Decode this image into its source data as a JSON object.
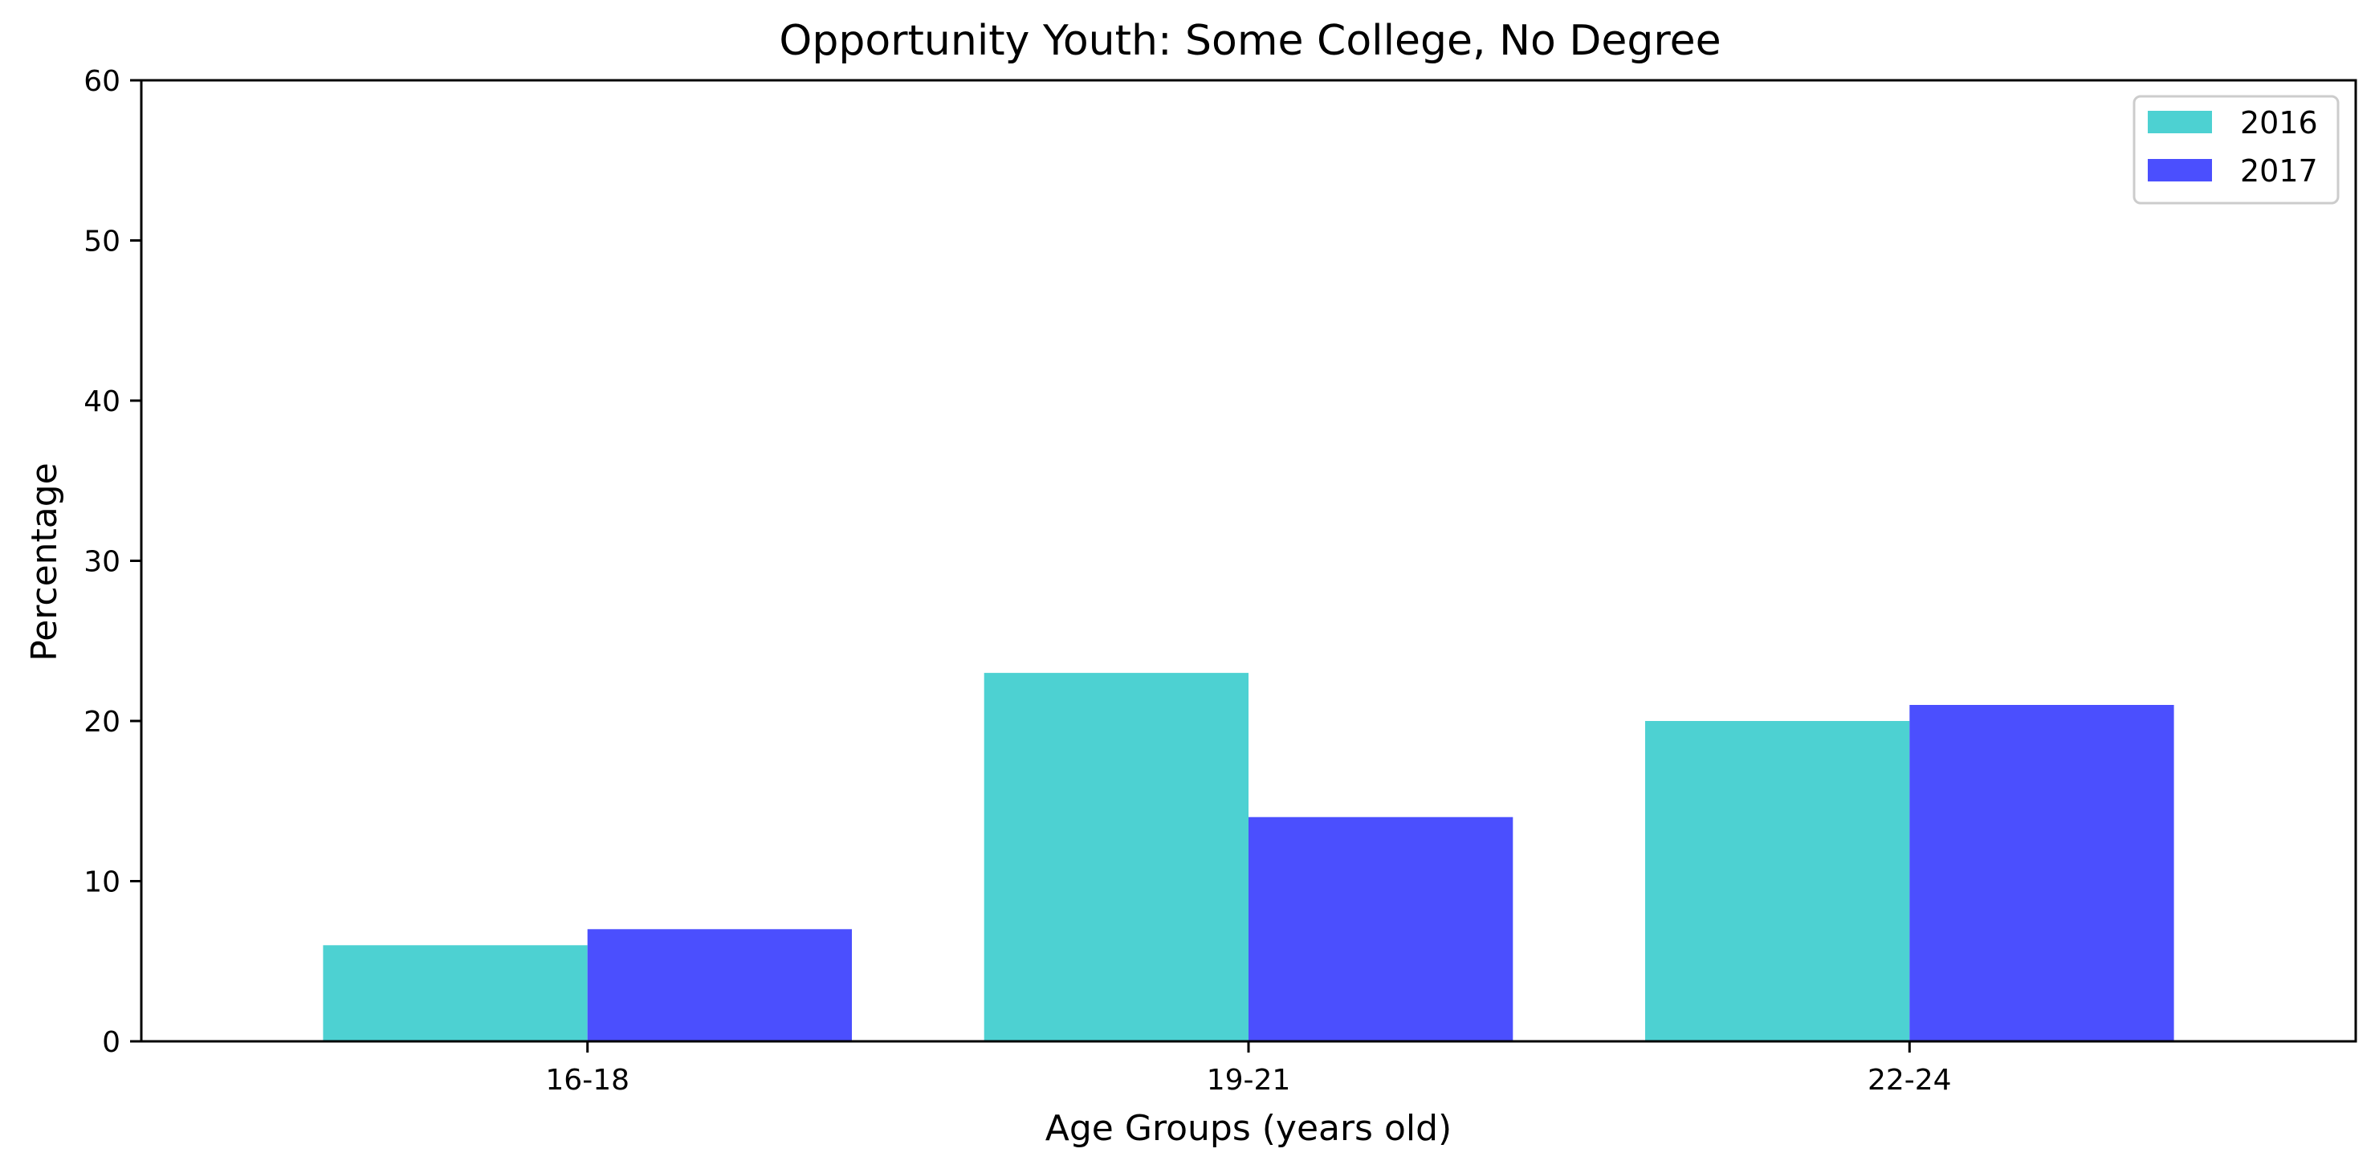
{
  "chart_data": {
    "type": "bar",
    "title": "Opportunity Youth: Some College, No Degree",
    "xlabel": "Age Groups (years old)",
    "ylabel": "Percentage",
    "categories": [
      "16-18",
      "19-21",
      "22-24"
    ],
    "series": [
      {
        "name": "2016",
        "values": [
          6,
          23,
          20
        ],
        "color": "#4dd1d2"
      },
      {
        "name": "2017",
        "values": [
          7,
          14,
          21
        ],
        "color": "#4b4ffe"
      }
    ],
    "ylim": [
      0,
      60
    ],
    "yticks": [
      0,
      10,
      20,
      30,
      40,
      50,
      60
    ],
    "grid": false,
    "legend_position": "top-right"
  }
}
